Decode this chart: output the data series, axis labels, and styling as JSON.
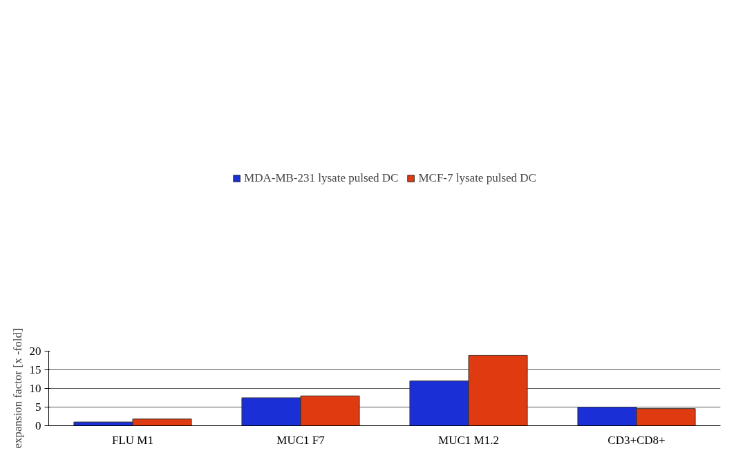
{
  "chart_data": {
    "type": "bar",
    "ylabel": "expansion factor [x -fold]",
    "categories": [
      "FLU M1",
      "MUC1 F7",
      "MUC1 M1.2",
      "CD3+CD8+"
    ],
    "series": [
      {
        "name": "MDA-MB-231 lysate pulsed DC",
        "color": "#1a2fd6",
        "values": [
          1.0,
          7.5,
          12.0,
          5.0
        ]
      },
      {
        "name": "MCF-7 lysate pulsed DC",
        "color": "#e03a10",
        "values": [
          1.8,
          8.0,
          18.9,
          4.6
        ]
      }
    ],
    "ylim": [
      0,
      20
    ],
    "yticks": [
      0,
      5,
      10,
      15,
      20
    ],
    "grid": "y",
    "legend": "top"
  }
}
